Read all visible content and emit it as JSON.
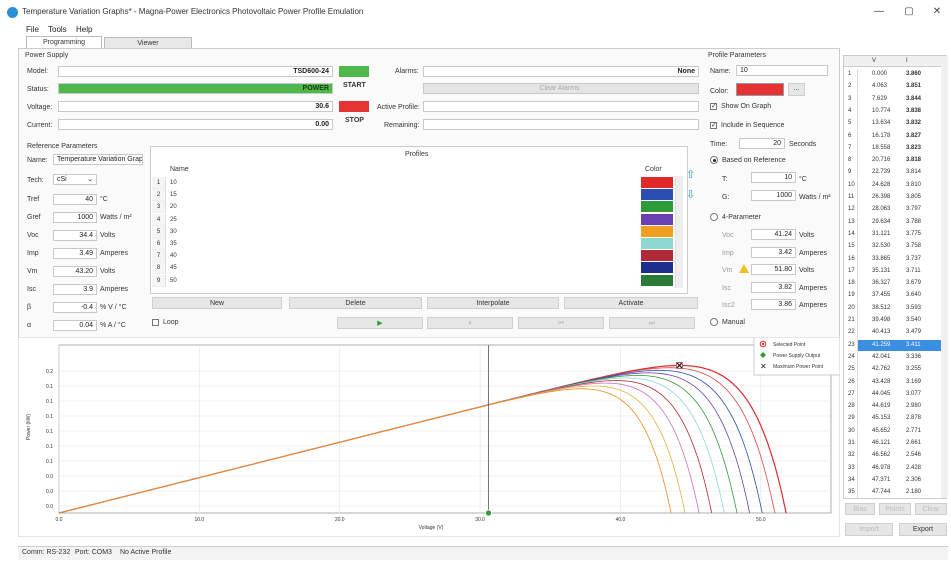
{
  "window": {
    "title": "Temperature Variation Graphs* - Magna-Power Electronics Photovoltaic Power Profile Emulation",
    "minimize": "—",
    "maximize": "▢",
    "close": "✕"
  },
  "menu": [
    "File",
    "Tools",
    "Help"
  ],
  "tabs": [
    "Programming",
    "Viewer"
  ],
  "power_supply": {
    "section": "Power Supply",
    "model_label": "Model:",
    "model_value": "TSD600-24",
    "status_label": "Status:",
    "status_value": "POWER",
    "voltage_label": "Voltage:",
    "voltage_value": "30.6",
    "current_label": "Current:",
    "current_value": "0.00",
    "start_label": "START",
    "stop_label": "STOP",
    "start_color": "#4fb84a",
    "stop_color": "#e53333",
    "alarms_label": "Alarms:",
    "alarms_value": "None",
    "clear_alarms": "Clear Alarms",
    "active_profile_label": "Active Profile:",
    "active_profile_value": "",
    "remaining_label": "Remaining:",
    "remaining_value": ""
  },
  "reference": {
    "section": "Reference Parameters",
    "name_label": "Name:",
    "name_value": "Temperature Variation Graphs",
    "tech_label": "Tech:",
    "tech_value": "cSi",
    "rows": [
      {
        "label": "Tref",
        "value": "40",
        "unit": "°C"
      },
      {
        "label": "Gref",
        "value": "1000",
        "unit": "Watts / m²"
      },
      {
        "label": "Voc",
        "value": "34.4",
        "unit": "Volts"
      },
      {
        "label": "Imp",
        "value": "3.49",
        "unit": "Amperes"
      },
      {
        "label": "Vm",
        "value": "43.20",
        "unit": "Volts"
      },
      {
        "label": "Isc",
        "value": "3.9",
        "unit": "Amperes"
      },
      {
        "label": "β",
        "value": "-0.4",
        "unit": "% V / °C"
      },
      {
        "label": "α",
        "value": "0.04",
        "unit": "% A / °C"
      }
    ]
  },
  "profiles": {
    "title": "Profiles",
    "col_name": "Name",
    "col_color": "Color",
    "rows": [
      {
        "num": "1",
        "name": "10",
        "color": "#e02a2a"
      },
      {
        "num": "2",
        "name": "15",
        "color": "#2a4fb0"
      },
      {
        "num": "3",
        "name": "20",
        "color": "#2e9a3a"
      },
      {
        "num": "4",
        "name": "25",
        "color": "#6a3fb0"
      },
      {
        "num": "5",
        "name": "30",
        "color": "#f0a020"
      },
      {
        "num": "6",
        "name": "35",
        "color": "#8fd8d0"
      },
      {
        "num": "7",
        "name": "40",
        "color": "#b02a3a"
      },
      {
        "num": "8",
        "name": "45",
        "color": "#1e2e8a"
      },
      {
        "num": "9",
        "name": "50",
        "color": "#2a7a3a"
      }
    ],
    "buttons": [
      "New",
      "Delete",
      "Interpolate",
      "Activate"
    ],
    "loop_label": "Loop",
    "transport": [
      "▶",
      "⏸",
      "⏮",
      "⏭"
    ]
  },
  "profile_params": {
    "section": "Profile Parameters",
    "name_label": "Name:",
    "name_value": "10",
    "color_label": "Color:",
    "color_value": "#e53333",
    "ellipsis": "...",
    "show_on_graph": "Show On Graph",
    "include_in_sequence": "Include in Sequence",
    "time_label": "Time:",
    "time_value": "20",
    "time_unit": "Seconds",
    "based_on_reference": "Based on Reference",
    "t_label": "T:",
    "t_value": "10",
    "t_unit": "°C",
    "g_label": "G:",
    "g_value": "1000",
    "g_unit": "Watts / m²",
    "four_param": "4-Parameter",
    "fp_rows": [
      {
        "label": "Voc",
        "value": "41.24",
        "unit": "Volts"
      },
      {
        "label": "Imp",
        "value": "3.42",
        "unit": "Amperes"
      },
      {
        "label": "Vm",
        "value": "51.80",
        "unit": "Volts"
      },
      {
        "label": "Isc",
        "value": "3.82",
        "unit": "Amperes"
      },
      {
        "label": "Isc2",
        "value": "3.86",
        "unit": "Amperes"
      }
    ],
    "manual": "Manual"
  },
  "right_table": {
    "col_v": "V",
    "col_i": "I",
    "rows": [
      [
        "1",
        "0.000",
        "3.860"
      ],
      [
        "2",
        "4.063",
        "3.851"
      ],
      [
        "3",
        "7.629",
        "3.844"
      ],
      [
        "4",
        "10.774",
        "3.838"
      ],
      [
        "5",
        "13.634",
        "3.832"
      ],
      [
        "6",
        "16.178",
        "3.827"
      ],
      [
        "7",
        "18.558",
        "3.823"
      ],
      [
        "8",
        "20.716",
        "3.818"
      ],
      [
        "9",
        "22.739",
        "3.814"
      ],
      [
        "10",
        "24.628",
        "3.810"
      ],
      [
        "11",
        "26.398",
        "3.805"
      ],
      [
        "12",
        "28.063",
        "3.797"
      ],
      [
        "13",
        "29.634",
        "3.788"
      ],
      [
        "14",
        "31.121",
        "3.775"
      ],
      [
        "15",
        "32.530",
        "3.758"
      ],
      [
        "16",
        "33.865",
        "3.737"
      ],
      [
        "17",
        "35.131",
        "3.711"
      ],
      [
        "18",
        "36.327",
        "3.679"
      ],
      [
        "19",
        "37.455",
        "3.640"
      ],
      [
        "20",
        "38.512",
        "3.593"
      ],
      [
        "21",
        "39.498",
        "3.540"
      ],
      [
        "22",
        "40.413",
        "3.479"
      ],
      [
        "23",
        "41.259",
        "3.411"
      ],
      [
        "24",
        "42.041",
        "3.336"
      ],
      [
        "25",
        "42.762",
        "3.255"
      ],
      [
        "26",
        "43.428",
        "3.169"
      ],
      [
        "27",
        "44.045",
        "3.077"
      ],
      [
        "28",
        "44.619",
        "2.980"
      ],
      [
        "29",
        "45.153",
        "2.878"
      ],
      [
        "30",
        "45.652",
        "2.771"
      ],
      [
        "31",
        "46.121",
        "2.661"
      ],
      [
        "32",
        "46.562",
        "2.546"
      ],
      [
        "33",
        "46.978",
        "2.428"
      ],
      [
        "34",
        "47.371",
        "2.306"
      ],
      [
        "35",
        "47.744",
        "2.180"
      ]
    ],
    "selected_row": 22,
    "buttons": [
      "Bias",
      "Points",
      "Clear"
    ],
    "import": "Import",
    "export": "Export"
  },
  "graph": {
    "ylabel": "Power (kW)",
    "xlabel": "Voltage (V)",
    "xticks": [
      "0.0",
      "10.0",
      "20.0",
      "30.0",
      "40.0",
      "50.0"
    ],
    "yticks": [
      "0.2",
      "0.1",
      "0.1",
      "0.1",
      "0.1",
      "0.1",
      "0.1",
      "0.0",
      "0.0",
      "0.0"
    ],
    "legend": [
      "Selected Point",
      "Power Supply Output",
      "Maximum Power Point"
    ],
    "cursor_v": 30.6
  },
  "chart_data": {
    "type": "line",
    "xlabel": "Voltage (V)",
    "ylabel": "Power (kW)",
    "xlim": [
      0,
      55
    ],
    "ylim": [
      0,
      0.15
    ],
    "series": [
      {
        "voc": 51.8,
        "color": "#e02a2a"
      },
      {
        "voc": 51.0,
        "color": "#d84a4a"
      },
      {
        "voc": 50.1,
        "color": "#2a4fb0"
      },
      {
        "voc": 49.2,
        "color": "#6a3fb0"
      },
      {
        "voc": 48.3,
        "color": "#2e9a3a"
      },
      {
        "voc": 47.4,
        "color": "#8fd8d0"
      },
      {
        "voc": 46.5,
        "color": "#b02a3a"
      },
      {
        "voc": 45.6,
        "color": "#d070b0"
      },
      {
        "voc": 44.6,
        "color": "#e0b040"
      },
      {
        "voc": 43.6,
        "color": "#f08a20"
      }
    ]
  },
  "status": {
    "comm": "Comm: RS-232",
    "port": "Port: COM3",
    "profile": "No Active Profile"
  }
}
